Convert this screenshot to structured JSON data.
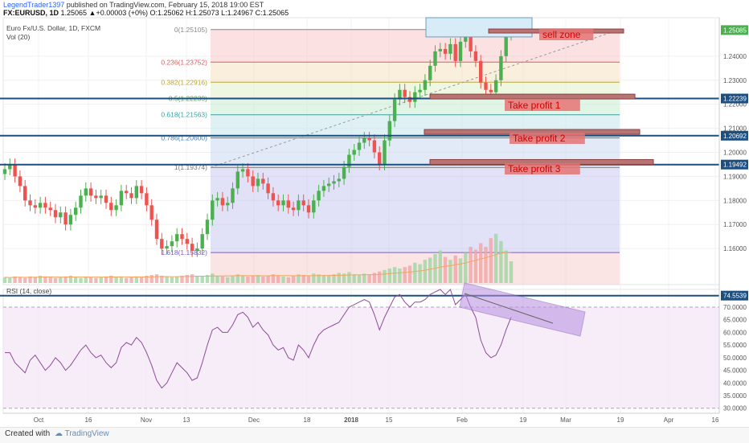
{
  "header": {
    "user": "LegendTrader1397",
    "published": " published on TradingView.com, February 15, 2018 19:00 EST",
    "symbol": "FX:EURUSD, 1D",
    "ohlc": " 1.25065 ▲+0.00003 (+0%) O:1.25062 H:1.25073 L:1.24967 C:1.25065"
  },
  "legend": {
    "instrument": "Euro Fx/U.S. Dollar, 1D, FXCM",
    "volume": "Vol (20)",
    "rsi": "RSI (14, close)"
  },
  "colors": {
    "up": "#4caf50",
    "down": "#ef5350",
    "level_line": "#1c4e80",
    "rsi_line": "#8e4a98",
    "annotation_text": "#d50000",
    "price_badge": "#4caf50"
  },
  "annotations": {
    "sell_zone": "sell zone",
    "tp1": "Take profit 1",
    "tp2": "Take profit 2",
    "tp3": "Take profit 3"
  },
  "chart_data": {
    "type": "candlestick",
    "y_range": [
      1.145,
      1.256
    ],
    "price_badges": [
      "1.25085",
      "1.22239",
      "1.20692",
      "1.19492"
    ],
    "y_ticks": [
      "1.24000",
      "1.23000",
      "1.22000",
      "1.21000",
      "1.20000",
      "1.19000",
      "1.18000",
      "1.17000",
      "1.16000"
    ],
    "x_ticks": [
      "Oct",
      "16",
      "Nov",
      "13",
      "Dec",
      "18",
      "2018",
      "15",
      "Feb",
      "19",
      "Mar",
      "19",
      "Apr",
      "16"
    ],
    "fib_levels": [
      {
        "label": "0(1.25105)",
        "value": 1.25105
      },
      {
        "label": "0.236(1.23752)",
        "value": 1.23752
      },
      {
        "label": "0.382(1.22916)",
        "value": 1.22916
      },
      {
        "label": "0.5(1.22239)",
        "value": 1.22239
      },
      {
        "label": "0.618(1.21563)",
        "value": 1.21563
      },
      {
        "label": "0.786(1.20600)",
        "value": 1.206
      },
      {
        "label": "1(1.19374)",
        "value": 1.19374
      },
      {
        "label": "1.618(1.15832)",
        "value": 1.15832
      }
    ],
    "horizontal_levels": [
      1.22239,
      1.20692,
      1.19492
    ],
    "candles_close": [
      1.193,
      1.195,
      1.19,
      1.186,
      1.18,
      1.178,
      1.177,
      1.179,
      1.177,
      1.176,
      1.173,
      1.175,
      1.17,
      1.174,
      1.177,
      1.182,
      1.185,
      1.182,
      1.181,
      1.182,
      1.179,
      1.176,
      1.178,
      1.184,
      1.183,
      1.181,
      1.186,
      1.183,
      1.178,
      1.172,
      1.164,
      1.16,
      1.161,
      1.163,
      1.166,
      1.164,
      1.162,
      1.159,
      1.16,
      1.166,
      1.172,
      1.18,
      1.181,
      1.178,
      1.179,
      1.185,
      1.192,
      1.193,
      1.19,
      1.186,
      1.189,
      1.187,
      1.183,
      1.18,
      1.178,
      1.18,
      1.177,
      1.176,
      1.18,
      1.178,
      1.175,
      1.18,
      1.184,
      1.186,
      1.187,
      1.188,
      1.189,
      1.194,
      1.199,
      1.201,
      1.204,
      1.206,
      1.205,
      1.2,
      1.195,
      1.205,
      1.213,
      1.222,
      1.226,
      1.223,
      1.221,
      1.225,
      1.226,
      1.23,
      1.236,
      1.242,
      1.243,
      1.241,
      1.245,
      1.238,
      1.246,
      1.25,
      1.242,
      1.238,
      1.229,
      1.226,
      1.225,
      1.23,
      1.24,
      1.249,
      1.2506
    ],
    "volume": [
      0.08,
      0.07,
      0.09,
      0.08,
      0.07,
      0.09,
      0.08,
      0.1,
      0.09,
      0.08,
      0.07,
      0.08,
      0.09,
      0.1,
      0.08,
      0.07,
      0.09,
      0.08,
      0.07,
      0.08,
      0.09,
      0.1,
      0.08,
      0.09,
      0.07,
      0.08,
      0.09,
      0.08,
      0.1,
      0.11,
      0.12,
      0.1,
      0.09,
      0.08,
      0.09,
      0.1,
      0.11,
      0.12,
      0.1,
      0.09,
      0.11,
      0.13,
      0.1,
      0.09,
      0.08,
      0.1,
      0.12,
      0.1,
      0.09,
      0.1,
      0.11,
      0.09,
      0.1,
      0.12,
      0.1,
      0.09,
      0.08,
      0.1,
      0.12,
      0.11,
      0.1,
      0.13,
      0.12,
      0.11,
      0.1,
      0.12,
      0.14,
      0.13,
      0.15,
      0.12,
      0.11,
      0.13,
      0.12,
      0.14,
      0.16,
      0.18,
      0.2,
      0.22,
      0.2,
      0.22,
      0.24,
      0.28,
      0.26,
      0.32,
      0.35,
      0.4,
      0.45,
      0.36,
      0.32,
      0.38,
      0.34,
      0.42,
      0.5,
      0.46,
      0.55,
      0.5,
      0.62,
      0.68,
      0.58,
      0.45,
      0.3
    ],
    "rsi_y_range": [
      28.0,
      77.0
    ],
    "rsi_ticks": [
      "74.5539",
      "70.0000",
      "65.0000",
      "60.0000",
      "55.0000",
      "50.0000",
      "45.0000",
      "40.0000",
      "35.0000",
      "30.0000"
    ],
    "rsi": [
      52,
      52,
      48,
      46,
      44,
      49,
      51,
      48,
      45,
      47,
      50,
      48,
      45,
      47,
      50,
      53,
      55,
      52,
      50,
      51,
      48,
      46,
      48,
      54,
      56,
      55,
      58,
      56,
      52,
      47,
      41,
      38,
      40,
      44,
      48,
      46,
      44,
      41,
      42,
      48,
      55,
      61,
      62,
      60,
      60,
      63,
      67,
      68,
      66,
      62,
      64,
      61,
      59,
      55,
      53,
      54,
      50,
      49,
      55,
      53,
      50,
      55,
      59,
      61,
      62,
      63,
      64,
      67,
      70,
      71,
      72,
      73,
      72,
      67,
      61,
      66,
      70,
      74,
      75,
      72,
      70,
      72,
      72,
      73,
      75,
      76,
      77,
      75,
      77,
      71,
      73,
      75,
      70,
      66,
      57,
      52,
      50,
      51,
      55,
      61,
      66
    ]
  }
}
